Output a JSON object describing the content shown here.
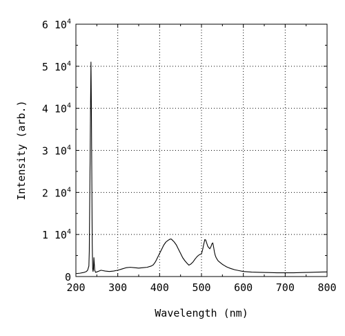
{
  "chart_data": {
    "type": "line",
    "title": "",
    "xlabel": "Wavelength (nm)",
    "ylabel": "Intensity (arb.)",
    "xlim": [
      200,
      800
    ],
    "ylim": [
      0,
      60000
    ],
    "grid": true,
    "grid_style": "dotted",
    "x_ticks": [
      {
        "value": 200,
        "label": "200"
      },
      {
        "value": 300,
        "label": "300"
      },
      {
        "value": 400,
        "label": "400"
      },
      {
        "value": 500,
        "label": "500"
      },
      {
        "value": 600,
        "label": "600"
      },
      {
        "value": 700,
        "label": "700"
      },
      {
        "value": 800,
        "label": "800"
      }
    ],
    "y_ticks": [
      {
        "value": 0,
        "label": "0",
        "exponent": ""
      },
      {
        "value": 10000,
        "label": "1 10",
        "exponent": "4"
      },
      {
        "value": 20000,
        "label": "2 10",
        "exponent": "4"
      },
      {
        "value": 30000,
        "label": "3 10",
        "exponent": "4"
      },
      {
        "value": 40000,
        "label": "4 10",
        "exponent": "4"
      },
      {
        "value": 50000,
        "label": "5 10",
        "exponent": "4"
      },
      {
        "value": 60000,
        "label": "6 10",
        "exponent": "4"
      }
    ],
    "series": [
      {
        "color": "#000000",
        "x": [
          200,
          210,
          220,
          225,
          228,
          231,
          232,
          233,
          234,
          235,
          236,
          237,
          238,
          239,
          240,
          241,
          242,
          243,
          244,
          245,
          247,
          250,
          255,
          260,
          265,
          270,
          280,
          290,
          300,
          310,
          320,
          330,
          340,
          350,
          360,
          370,
          380,
          385,
          390,
          395,
          400,
          405,
          410,
          415,
          420,
          425,
          428,
          430,
          432,
          435,
          440,
          445,
          450,
          455,
          460,
          465,
          470,
          475,
          480,
          485,
          490,
          495,
          500,
          503,
          505,
          508,
          510,
          513,
          515,
          518,
          520,
          523,
          525,
          527,
          529,
          531,
          533,
          535,
          538,
          540,
          545,
          550,
          555,
          560,
          565,
          570,
          580,
          590,
          600,
          620,
          640,
          660,
          680,
          700,
          720,
          740,
          760,
          780,
          800
        ],
        "y": [
          700,
          800,
          1000,
          1200,
          1500,
          2500,
          6000,
          18000,
          28000,
          41000,
          51000,
          40000,
          24000,
          8000,
          2000,
          1200,
          1800,
          4500,
          3000,
          1500,
          1000,
          1100,
          1300,
          1500,
          1400,
          1300,
          1200,
          1300,
          1500,
          1800,
          2100,
          2200,
          2100,
          2000,
          2100,
          2200,
          2500,
          2800,
          3500,
          4500,
          5500,
          6500,
          7500,
          8200,
          8600,
          8900,
          8900,
          8700,
          8500,
          8200,
          7500,
          6500,
          5500,
          4500,
          3800,
          3200,
          2700,
          3000,
          3500,
          4200,
          4800,
          5200,
          5400,
          6500,
          7500,
          8800,
          8700,
          7800,
          7200,
          6800,
          6600,
          7200,
          7800,
          8000,
          7000,
          5800,
          5000,
          4500,
          4000,
          3700,
          3300,
          2900,
          2600,
          2300,
          2100,
          1900,
          1600,
          1400,
          1200,
          1050,
          1000,
          950,
          900,
          900,
          900,
          950,
          1000,
          1050,
          1100
        ]
      }
    ]
  }
}
